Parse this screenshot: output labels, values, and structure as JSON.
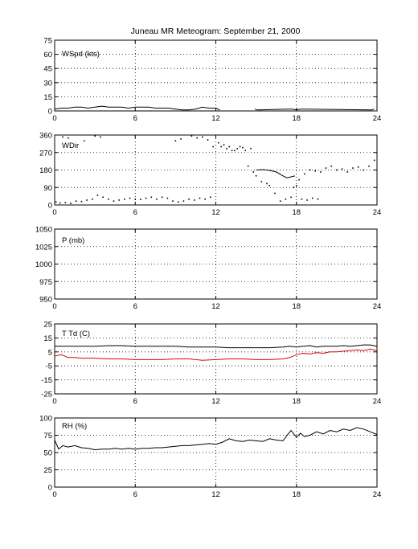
{
  "title": "Juneau MR Meteogram: September 21, 2000",
  "chart_data": [
    {
      "type": "line",
      "label": "WSpd (kts)",
      "xlim": [
        0,
        24
      ],
      "ylim": [
        0,
        75
      ],
      "xticks": [
        0,
        6,
        12,
        18,
        24
      ],
      "yticks": [
        0,
        15,
        30,
        45,
        60,
        75
      ],
      "grid": true,
      "series": [
        {
          "color": "#000000",
          "style": "line",
          "x": [
            0,
            0.5,
            1,
            1.5,
            2,
            2.5,
            3,
            3.5,
            4,
            4.5,
            5,
            5.5,
            6,
            6.5,
            7,
            7.5,
            8,
            8.5,
            9,
            9.5,
            10,
            10.5,
            11,
            11.5,
            12,
            12.3
          ],
          "y": [
            2,
            3,
            3,
            4,
            4,
            3,
            4,
            5,
            4,
            4,
            4,
            3,
            4,
            4,
            4,
            3,
            3,
            3,
            2,
            1,
            1,
            2,
            4,
            3,
            3,
            1
          ]
        },
        {
          "color": "#000000",
          "style": "line",
          "x": [
            14.9,
            15.1,
            17.4,
            17.7,
            18.0,
            18.3,
            23.6,
            23.8
          ],
          "y": [
            2,
            1,
            2,
            2,
            1,
            2,
            1,
            2
          ]
        }
      ]
    },
    {
      "type": "scatter",
      "label": "WDir",
      "xlim": [
        0,
        24
      ],
      "ylim": [
        0,
        360
      ],
      "xticks": [
        0,
        6,
        12,
        18,
        24
      ],
      "yticks": [
        0,
        90,
        180,
        270,
        360
      ],
      "grid": true,
      "series": [
        {
          "color": "#000000",
          "style": "dots",
          "x": [
            0.1,
            0.4,
            0.8,
            1.2,
            1.6,
            2.0,
            2.4,
            2.8,
            3.2,
            3.6,
            4.0,
            4.4,
            4.8,
            5.2,
            5.6,
            6.0,
            6.4,
            6.8,
            7.2,
            7.6,
            8.0,
            8.4,
            8.8,
            9.2,
            9.6,
            10.0,
            10.4,
            10.8,
            11.2,
            11.6,
            0.6,
            1.0,
            2.2,
            3.0,
            3.4,
            9.0,
            9.4,
            10.2,
            10.6,
            11.0,
            11.4,
            11.8,
            12.2,
            12.6,
            13.0,
            13.2,
            13.6,
            14.0,
            14.4,
            14.8,
            15.0,
            15.4,
            15.8,
            16.0,
            16.4,
            16.8,
            17.2,
            17.6,
            17.8,
            18.0,
            18.2,
            18.6,
            19.0,
            19.4,
            19.8,
            20.2,
            20.6,
            21.0,
            21.4,
            21.8,
            22.2,
            22.6,
            23.0,
            23.4,
            23.8,
            12.4,
            12.8,
            13.4,
            13.8,
            14.2,
            14.6,
            18.4,
            18.8,
            19.2,
            19.6
          ],
          "y": [
            15,
            10,
            12,
            8,
            20,
            18,
            25,
            30,
            50,
            40,
            30,
            20,
            25,
            30,
            35,
            30,
            28,
            35,
            40,
            30,
            40,
            35,
            20,
            15,
            20,
            30,
            25,
            35,
            30,
            40,
            350,
            345,
            330,
            355,
            350,
            330,
            340,
            355,
            345,
            350,
            335,
            300,
            320,
            310,
            300,
            280,
            290,
            295,
            200,
            170,
            150,
            120,
            110,
            100,
            60,
            20,
            30,
            40,
            90,
            100,
            130,
            160,
            180,
            175,
            170,
            190,
            200,
            180,
            185,
            170,
            190,
            195,
            180,
            200,
            230,
            300,
            290,
            280,
            300,
            280,
            290,
            30,
            25,
            35,
            30
          ]
        },
        {
          "color": "#000000",
          "style": "line",
          "x": [
            15.0,
            15.5,
            16.0,
            16.5,
            17.0,
            17.3,
            17.6,
            17.9
          ],
          "y": [
            180,
            182,
            178,
            170,
            150,
            140,
            145,
            150
          ]
        }
      ]
    },
    {
      "type": "line",
      "label": "P (mb)",
      "xlim": [
        0,
        24
      ],
      "ylim": [
        950,
        1050
      ],
      "xticks": [
        0,
        6,
        12,
        18,
        24
      ],
      "yticks": [
        950,
        975,
        1000,
        1025,
        1050
      ],
      "grid": true,
      "series": []
    },
    {
      "type": "line",
      "label": "T Td (C)",
      "xlim": [
        0,
        24
      ],
      "ylim": [
        -25,
        25
      ],
      "xticks": [
        0,
        6,
        12,
        18,
        24
      ],
      "yticks": [
        -25,
        -15,
        -5,
        5,
        15,
        25
      ],
      "grid": true,
      "series": [
        {
          "name": "T",
          "color": "#000000",
          "style": "line",
          "x": [
            0,
            1,
            2,
            3,
            4,
            5,
            6,
            7,
            8,
            9,
            10,
            11,
            12,
            13,
            14,
            15,
            16,
            17,
            17.5,
            18,
            18.5,
            19,
            19.5,
            20,
            20.5,
            21,
            21.5,
            22,
            22.5,
            23,
            23.5,
            24
          ],
          "y": [
            9,
            9,
            9,
            9,
            9.5,
            9.5,
            9,
            9,
            9,
            9,
            8.5,
            8.5,
            8.5,
            8,
            8,
            8,
            8,
            8.5,
            9,
            8.5,
            9,
            9.5,
            8.5,
            9,
            9,
            9,
            9.5,
            9,
            9.5,
            10,
            10,
            9
          ]
        },
        {
          "name": "Td",
          "color": "#e00000",
          "style": "line",
          "x": [
            0,
            0.5,
            1,
            1.5,
            2,
            3,
            4,
            5,
            6,
            7,
            8,
            9,
            10,
            11,
            12,
            13,
            14,
            15,
            16,
            17,
            17.5,
            18,
            18.5,
            19,
            19.5,
            20,
            20.5,
            21,
            21.5,
            22,
            22.5,
            23,
            23.5,
            24
          ],
          "y": [
            2,
            3,
            1,
            1,
            0.5,
            0.5,
            0,
            0,
            -0.5,
            -0.5,
            -0.5,
            0,
            0,
            -1,
            -0.5,
            0,
            0,
            -0.5,
            -0.5,
            0,
            1,
            3,
            4,
            3.5,
            4.5,
            4,
            5,
            5,
            5.5,
            6,
            6.5,
            6,
            7,
            6
          ]
        }
      ]
    },
    {
      "type": "line",
      "label": "RH (%)",
      "xlim": [
        0,
        24
      ],
      "ylim": [
        0,
        100
      ],
      "xticks": [
        0,
        6,
        12,
        18,
        24
      ],
      "yticks": [
        0,
        25,
        50,
        75,
        100
      ],
      "grid": true,
      "series": [
        {
          "color": "#000000",
          "style": "line",
          "x": [
            0,
            0.3,
            0.6,
            1,
            1.5,
            2,
            2.5,
            3,
            3.5,
            4,
            4.5,
            5,
            5.5,
            6,
            6.5,
            7,
            7.5,
            8,
            8.5,
            9,
            9.5,
            10,
            10.5,
            11,
            11.5,
            12,
            12.5,
            13,
            13.5,
            14,
            14.5,
            15,
            15.5,
            16,
            16.5,
            17,
            17.3,
            17.6,
            18,
            18.3,
            18.6,
            19,
            19.5,
            20,
            20.5,
            21,
            21.5,
            22,
            22.5,
            23,
            23.5,
            24
          ],
          "y": [
            68,
            55,
            60,
            58,
            60,
            57,
            56,
            54,
            55,
            55,
            56,
            55,
            56,
            55,
            56,
            56,
            57,
            57,
            58,
            59,
            60,
            60,
            61,
            62,
            63,
            62,
            65,
            70,
            67,
            66,
            68,
            67,
            66,
            70,
            68,
            67,
            75,
            82,
            72,
            78,
            73,
            75,
            80,
            77,
            82,
            80,
            84,
            82,
            86,
            84,
            80,
            76
          ]
        }
      ]
    }
  ]
}
